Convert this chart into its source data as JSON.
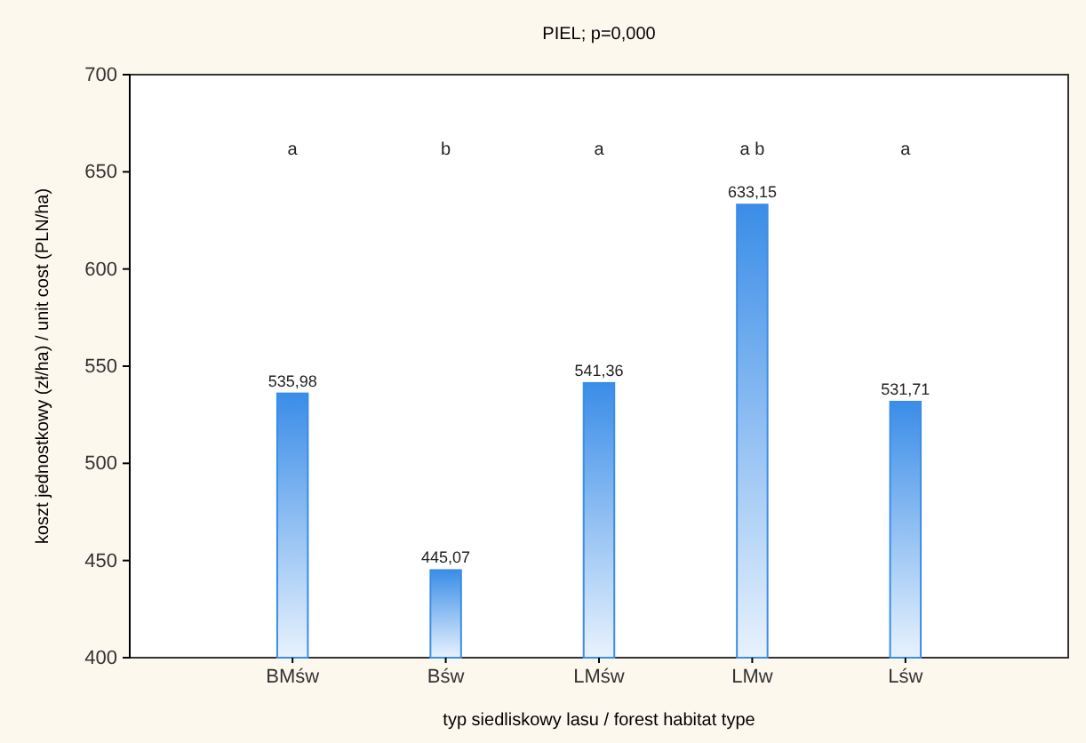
{
  "chart_data": {
    "type": "bar",
    "title": "PIEL; p=0,000",
    "xlabel": "typ siedliskowy lasu / forest habitat type",
    "ylabel": "koszt jednostkowy (zł/ha) / unit cost (PLN/ha)",
    "categories": [
      "BMśw",
      "Bśw",
      "LMśw",
      "LMw",
      "Lśw"
    ],
    "values": [
      535.98,
      445.07,
      541.36,
      633.15,
      531.71
    ],
    "value_labels": [
      "535,98",
      "445,07",
      "541,36",
      "633,15",
      "531,71"
    ],
    "color": "#3a8de8",
    "ylim": [
      400,
      700
    ],
    "yticks": [
      400,
      450,
      500,
      550,
      600,
      650,
      700
    ],
    "grid": false,
    "annotations": [
      "a",
      "b",
      "a",
      "a b",
      "a"
    ]
  }
}
